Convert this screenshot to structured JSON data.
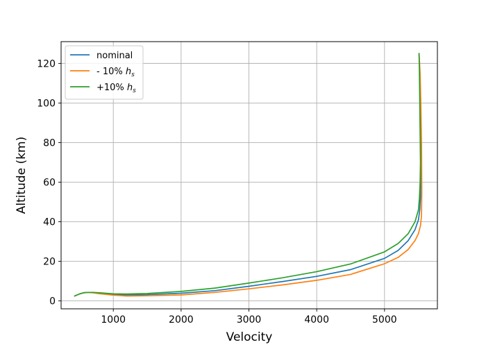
{
  "chart_data": {
    "type": "line",
    "title": "",
    "xlabel": "Velocity",
    "ylabel": "Altitude (km)",
    "xlim": [
      230,
      5780
    ],
    "ylim": [
      -4,
      131
    ],
    "xticks": [
      1000,
      2000,
      3000,
      4000,
      5000
    ],
    "yticks": [
      0,
      20,
      40,
      60,
      80,
      100,
      120
    ],
    "grid": true,
    "legend_position": "upper-left",
    "series": [
      {
        "name": "nominal",
        "label_main": "nominal",
        "label_sub": "",
        "color": "#1f77b4",
        "x": [
          430,
          500,
          560,
          620,
          700,
          800,
          1000,
          1200,
          1500,
          2000,
          2500,
          3000,
          3500,
          4000,
          4500,
          5000,
          5200,
          5350,
          5450,
          5500,
          5520,
          5530,
          5535,
          5530,
          5525,
          5520,
          5510
        ],
        "y": [
          2.5,
          3.5,
          4.1,
          4.3,
          4.2,
          3.9,
          3.2,
          3.0,
          3.2,
          3.9,
          5.2,
          7.4,
          9.8,
          12.4,
          15.8,
          21.5,
          25.5,
          30.5,
          36.0,
          41.0,
          46.0,
          52.0,
          60.0,
          80.0,
          100.0,
          115.0,
          125.0
        ]
      },
      {
        "name": "- 10% h_s",
        "label_main": "- 10% ",
        "label_sub": "s",
        "color": "#ff7f0e",
        "x": [
          430,
          500,
          560,
          620,
          700,
          800,
          1000,
          1200,
          1500,
          2000,
          2500,
          3000,
          3500,
          4000,
          4500,
          5000,
          5200,
          5350,
          5450,
          5500,
          5530,
          5545,
          5550,
          5545,
          5535,
          5525,
          5510
        ],
        "y": [
          2.5,
          3.5,
          4.1,
          4.3,
          4.1,
          3.6,
          2.9,
          2.5,
          2.6,
          3.0,
          4.3,
          6.1,
          8.1,
          10.4,
          13.4,
          18.8,
          22.0,
          26.0,
          30.5,
          34.0,
          38.0,
          43.0,
          55.0,
          80.0,
          100.0,
          115.0,
          125.0
        ]
      },
      {
        "name": "+10% h_s",
        "label_main": "+10% ",
        "label_sub": "s",
        "color": "#2ca02c",
        "x": [
          430,
          500,
          560,
          620,
          700,
          800,
          1000,
          1200,
          1500,
          2000,
          2500,
          3000,
          3500,
          4000,
          4500,
          5000,
          5200,
          5350,
          5450,
          5500,
          5515,
          5525,
          5530,
          5525,
          5520,
          5515,
          5510
        ],
        "y": [
          2.5,
          3.5,
          4.1,
          4.3,
          4.3,
          4.1,
          3.6,
          3.5,
          3.8,
          4.8,
          6.5,
          9.0,
          11.7,
          14.8,
          18.7,
          24.8,
          29.0,
          34.0,
          40.0,
          46.0,
          52.0,
          60.0,
          70.0,
          85.0,
          100.0,
          115.0,
          125.0
        ]
      }
    ]
  }
}
